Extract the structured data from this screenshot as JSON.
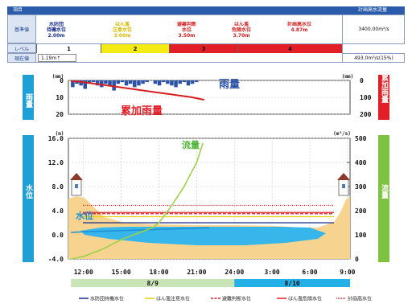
{
  "table": {
    "header_left": "項目",
    "header_right": "計画高水流量",
    "row1_label": "基準値",
    "levels": [
      {
        "name": "水防団\n待機水位",
        "value": "2.00m",
        "color": "#1a2e8c"
      },
      {
        "name": "はん濫\n注意水位",
        "value": "3.00m",
        "color": "#d6b800"
      },
      {
        "name": "避難判断\n水位",
        "value": "3.50m",
        "color": "#d02020"
      },
      {
        "name": "はん濫\n危険水位",
        "value": "3.70m",
        "color": "#d02020"
      },
      {
        "name": "計画高水位",
        "value": "4.87m",
        "color": "#d02020"
      }
    ],
    "design_flow": "3400.00m³/s",
    "row2_label": "レベル",
    "level_numbers": [
      "1",
      "2",
      "3",
      "4"
    ],
    "level_colors": [
      "#ffffff",
      "#f4ea14",
      "#e21f26",
      "#e21f26"
    ],
    "row3_label": "現在値",
    "current_level": "1.19m↑",
    "current_flow": "493.0m³/s(15%)"
  },
  "chart_data": [
    {
      "type": "area",
      "y_ticks": [
        "0",
        "10",
        "20"
      ],
      "y_unit": "(mm)",
      "left_axis_label": "雨量",
      "right_axis_label": "累加雨量",
      "right_ticks": [
        "0",
        "100",
        "200"
      ],
      "right_unit": "(mm)",
      "annotations": [
        "雨量",
        "累加雨量"
      ],
      "ylim": [
        0,
        20
      ],
      "right_ylim": [
        0,
        200
      ],
      "rain_bars": [
        4,
        2,
        3,
        5,
        2,
        1,
        3,
        4,
        2,
        3,
        6,
        2,
        1,
        3,
        2,
        4,
        3,
        2,
        1,
        0,
        2,
        3,
        1,
        2,
        3,
        4,
        2,
        1,
        3,
        2,
        1,
        0
      ],
      "cumulative": [
        3,
        10,
        20,
        30,
        40,
        50,
        60,
        70,
        80,
        90,
        100,
        115
      ]
    },
    {
      "type": "line",
      "x_ticks": [
        "12:00",
        "15:00",
        "18:00",
        "21:00",
        "24:00",
        "3:00",
        "6:00",
        "9:00"
      ],
      "y_ticks": [
        "16.0",
        "12.0",
        "8.0",
        "4.0",
        "0.0",
        "-4.0"
      ],
      "y_unit": "(m)",
      "ylim": [
        -4,
        16
      ],
      "right_ticks": [
        "500",
        "400",
        "300",
        "200",
        "100",
        "0"
      ],
      "right_unit": "(m³/s)",
      "right_ylim": [
        0,
        500
      ],
      "left_axis_label": "水位",
      "right_axis_label": "流量",
      "annotations": [
        "水位",
        "流量"
      ],
      "thresholds": [
        {
          "name": "水防団待機水位",
          "value": 2.0,
          "color": "#1a2e8c",
          "style": "solid"
        },
        {
          "name": "はん濫注意水位",
          "value": 3.0,
          "color": "#e6d000",
          "style": "solid"
        },
        {
          "name": "避難判断水位",
          "value": 3.5,
          "color": "#e21f26",
          "style": "dashed"
        },
        {
          "name": "はん濫危険水位",
          "value": 3.7,
          "color": "#e21f26",
          "style": "solid"
        },
        {
          "name": "計画高水位",
          "value": 4.87,
          "color": "#e21f26",
          "style": "dotted"
        }
      ],
      "water_level": {
        "x": [
          11.0,
          12.0,
          13.5,
          15.0,
          16.5,
          18.0,
          19.5,
          21.0,
          22.0
        ],
        "y": [
          0.4,
          0.5,
          0.6,
          0.7,
          0.8,
          0.9,
          1.0,
          1.1,
          1.19
        ]
      },
      "flow": {
        "x": [
          11.0,
          12.0,
          13.5,
          15.0,
          16.5,
          17.5,
          18.0,
          19.0,
          20.0,
          21.0,
          21.5
        ],
        "y": [
          0,
          10,
          40,
          80,
          110,
          130,
          150,
          220,
          300,
          400,
          480
        ]
      },
      "bands": [
        {
          "label": "8/9",
          "color": "#c9e4b6"
        },
        {
          "label": "8/10",
          "color": "#22b0e6"
        }
      ]
    }
  ],
  "legend": [
    {
      "label": "水防団待機水位",
      "color": "#1a2e8c",
      "style": "solid"
    },
    {
      "label": "はん濫注意水位",
      "color": "#e6d000",
      "style": "solid"
    },
    {
      "label": "避難判断水位",
      "color": "#e21f26",
      "style": "dashed"
    },
    {
      "label": "はん濫危険水位",
      "color": "#e21f26",
      "style": "solid"
    },
    {
      "label": "計画高水位",
      "color": "#e21f26",
      "style": "dotted"
    }
  ]
}
